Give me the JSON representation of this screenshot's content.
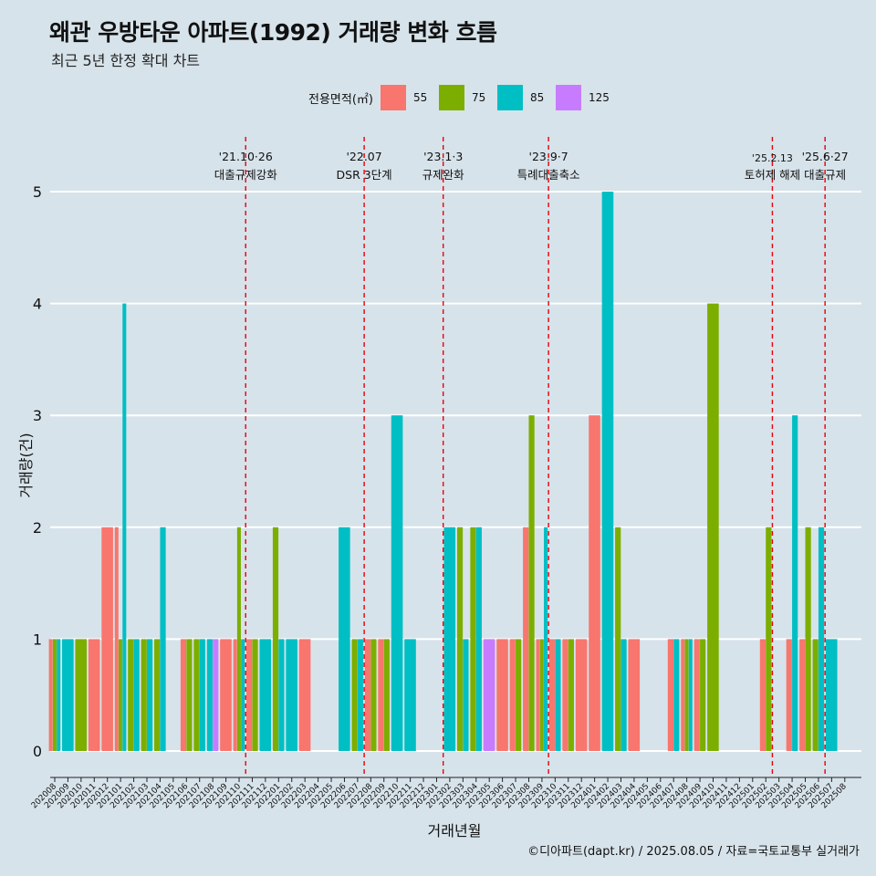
{
  "title": "왜관 우방타운 아파트(1992) 거래량 변화 흐름",
  "subtitle": "최근 5년 한정 확대 차트",
  "legend_title": "전용면적(㎡)",
  "xlabel": "거래년월",
  "ylabel": "거래량(건)",
  "caption": "©디아파트(dapt.kr) / 2025.08.05 / 자료=국토교통부 실거래가",
  "colors": {
    "background": "#d7e3ea",
    "gridline": "#ffffff",
    "event_line": "#e8000b",
    "55": "#f8766d",
    "75": "#7cae00",
    "85": "#00bfc4",
    "125": "#c77cff"
  },
  "chart_data": {
    "type": "bar",
    "stacking": "dodge",
    "ylim": [
      0,
      5
    ],
    "yticks": [
      0,
      1,
      2,
      3,
      4,
      5
    ],
    "grid": true,
    "legend_position": "top",
    "categories": [
      "202008",
      "202009",
      "202010",
      "202011",
      "202012",
      "202101",
      "202102",
      "202103",
      "202104",
      "202105",
      "202106",
      "202107",
      "202108",
      "202109",
      "202110",
      "202111",
      "202112",
      "202201",
      "202202",
      "202203",
      "202204",
      "202205",
      "202206",
      "202207",
      "202208",
      "202209",
      "202210",
      "202211",
      "202212",
      "202301",
      "202302",
      "202303",
      "202304",
      "202305",
      "202306",
      "202307",
      "202308",
      "202309",
      "202310",
      "202311",
      "202312",
      "202401",
      "202402",
      "202403",
      "202404",
      "202405",
      "202406",
      "202407",
      "202408",
      "202409",
      "202410",
      "202411",
      "202412",
      "202501",
      "202502",
      "202503",
      "202504",
      "202505",
      "202506",
      "202507",
      "202508"
    ],
    "series": [
      {
        "name": "55",
        "values": [
          1,
          0,
          0,
          1,
          2,
          2,
          0,
          0,
          0,
          0,
          1,
          0,
          0,
          1,
          1,
          1,
          0,
          0,
          0,
          1,
          0,
          0,
          0,
          0,
          1,
          1,
          0,
          0,
          0,
          0,
          0,
          0,
          0,
          0,
          1,
          1,
          2,
          1,
          1,
          1,
          1,
          3,
          0,
          0,
          1,
          0,
          0,
          1,
          1,
          1,
          0,
          0,
          0,
          0,
          1,
          0,
          1,
          1,
          0,
          0,
          0
        ]
      },
      {
        "name": "75",
        "values": [
          1,
          0,
          1,
          0,
          0,
          1,
          1,
          1,
          1,
          0,
          1,
          1,
          0,
          0,
          2,
          1,
          0,
          2,
          0,
          0,
          0,
          0,
          0,
          1,
          1,
          1,
          0,
          0,
          0,
          0,
          0,
          2,
          2,
          0,
          0,
          1,
          3,
          1,
          0,
          1,
          0,
          0,
          0,
          2,
          0,
          0,
          0,
          0,
          1,
          1,
          4,
          0,
          0,
          0,
          2,
          0,
          0,
          2,
          1,
          0,
          0
        ]
      },
      {
        "name": "85",
        "values": [
          1,
          1,
          0,
          0,
          0,
          4,
          1,
          1,
          2,
          0,
          0,
          1,
          1,
          0,
          1,
          0,
          1,
          1,
          1,
          0,
          0,
          0,
          2,
          1,
          0,
          0,
          3,
          1,
          0,
          0,
          2,
          1,
          2,
          0,
          0,
          0,
          0,
          2,
          1,
          0,
          0,
          0,
          5,
          1,
          0,
          0,
          0,
          1,
          1,
          0,
          0,
          0,
          0,
          0,
          0,
          0,
          3,
          0,
          2,
          1,
          0
        ]
      },
      {
        "name": "125",
        "values": [
          0,
          0,
          0,
          0,
          0,
          0,
          0,
          0,
          0,
          0,
          0,
          0,
          1,
          0,
          0,
          0,
          0,
          0,
          0,
          0,
          0,
          0,
          0,
          0,
          0,
          0,
          0,
          0,
          0,
          0,
          0,
          0,
          0,
          1,
          0,
          0,
          0,
          0,
          0,
          0,
          0,
          0,
          0,
          0,
          0,
          0,
          0,
          0,
          0,
          0,
          0,
          0,
          0,
          0,
          0,
          0,
          0,
          0,
          0,
          0,
          0
        ]
      }
    ],
    "events": [
      {
        "at": "202110",
        "line1": "'21.10·26",
        "line2": "대출규제강화"
      },
      {
        "at": "202207",
        "line1": "'22.07",
        "line2": "DSR 3단계"
      },
      {
        "at": "202301",
        "line1": "'23.1·3",
        "line2": "규제완화"
      },
      {
        "at": "202309",
        "line1": "'23.9·7",
        "line2": "특례대출축소"
      },
      {
        "at": "202502",
        "line1": "'25.2.13",
        "line2": "토허제 해제"
      },
      {
        "at": "202506",
        "line1": "'25.6·27",
        "line2": "대출규제"
      }
    ]
  }
}
